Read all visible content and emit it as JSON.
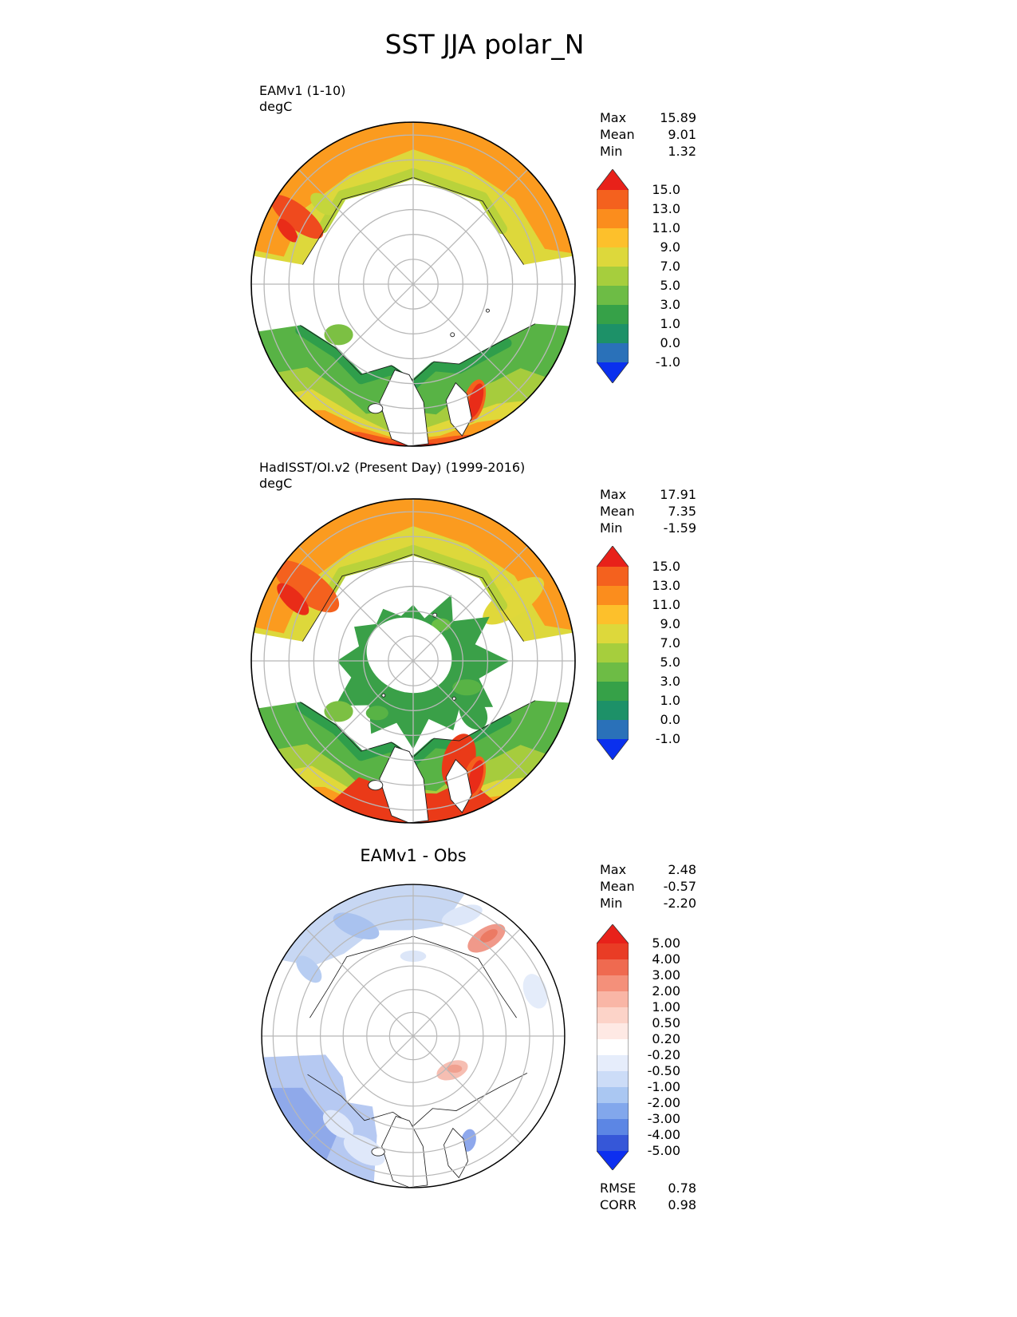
{
  "title": "SST JJA polar_N",
  "panels": [
    {
      "id": "model",
      "label": "EAMv1 (1-10)",
      "units": "degC",
      "stats": {
        "rows": [
          {
            "label": "Max",
            "value": "15.89"
          },
          {
            "label": "Mean",
            "value": "9.01"
          },
          {
            "label": "Min",
            "value": "1.32"
          }
        ]
      },
      "colorbar": {
        "arrow_top": "#e8211a",
        "segments": [
          "#f4611e",
          "#fb8d1d",
          "#fdc02b",
          "#ddd83b",
          "#a6ce3d",
          "#6dbc45",
          "#36a148",
          "#1d9168",
          "#2a71b9"
        ],
        "arrow_bottom": "#0a30ee",
        "ticks": [
          "15.0",
          "13.0",
          "11.0",
          "9.0",
          "7.0",
          "5.0",
          "3.0",
          "1.0",
          "0.0",
          "-1.0"
        ]
      }
    },
    {
      "id": "obs",
      "label": "HadISST/OI.v2 (Present Day) (1999-2016)",
      "units": "degC",
      "stats": {
        "rows": [
          {
            "label": "Max",
            "value": "17.91"
          },
          {
            "label": "Mean",
            "value": "7.35"
          },
          {
            "label": "Min",
            "value": "-1.59"
          }
        ]
      },
      "colorbar": {
        "arrow_top": "#e8211a",
        "segments": [
          "#f4611e",
          "#fb8d1d",
          "#fdc02b",
          "#ddd83b",
          "#a6ce3d",
          "#6dbc45",
          "#36a148",
          "#1d9168",
          "#2a71b9"
        ],
        "arrow_bottom": "#0a30ee",
        "ticks": [
          "15.0",
          "13.0",
          "11.0",
          "9.0",
          "7.0",
          "5.0",
          "3.0",
          "1.0",
          "0.0",
          "-1.0"
        ]
      }
    },
    {
      "id": "diff",
      "label": "EAMv1 - Obs",
      "stats": {
        "rows": [
          {
            "label": "Max",
            "value": "2.48"
          },
          {
            "label": "Mean",
            "value": "-0.57"
          },
          {
            "label": "Min",
            "value": "-2.20"
          }
        ]
      },
      "extra_stats": {
        "rows": [
          {
            "label": "RMSE",
            "value": "0.78"
          },
          {
            "label": "CORR",
            "value": "0.98"
          }
        ]
      },
      "colorbar": {
        "arrow_top": "#e8211a",
        "segments": [
          "#e93c25",
          "#ef6a50",
          "#f4907a",
          "#f9b6a6",
          "#fcd3c8",
          "#fee9e4",
          "#ffffff",
          "#e6edfb",
          "#ccdcf7",
          "#aac7f2",
          "#82a7ec",
          "#5c86e4",
          "#3657d8"
        ],
        "arrow_bottom": "#0d2ff0",
        "ticks": [
          "5.00",
          "4.00",
          "3.00",
          "2.00",
          "1.00",
          "0.50",
          "0.20",
          "-0.20",
          "-0.50",
          "-1.00",
          "-2.00",
          "-3.00",
          "-4.00",
          "-5.00"
        ]
      }
    }
  ],
  "chart_data": [
    {
      "type": "heatmap",
      "projection": "north_polar_stereographic",
      "variable": "SST",
      "season": "JJA",
      "region": "polar_N",
      "title": "EAMv1 (1-10)",
      "units": "degC",
      "stats": {
        "max": 15.89,
        "mean": 9.01,
        "min": 1.32
      },
      "contour_levels": [
        15.0,
        13.0,
        11.0,
        9.0,
        7.0,
        5.0,
        3.0,
        1.0,
        0.0,
        -1.0
      ],
      "colorbar_extend": "both"
    },
    {
      "type": "heatmap",
      "projection": "north_polar_stereographic",
      "variable": "SST",
      "season": "JJA",
      "region": "polar_N",
      "title": "HadISST/OI.v2 (Present Day) (1999-2016)",
      "units": "degC",
      "stats": {
        "max": 17.91,
        "mean": 7.35,
        "min": -1.59
      },
      "contour_levels": [
        15.0,
        13.0,
        11.0,
        9.0,
        7.0,
        5.0,
        3.0,
        1.0,
        0.0,
        -1.0
      ],
      "colorbar_extend": "both"
    },
    {
      "type": "heatmap",
      "projection": "north_polar_stereographic",
      "variable": "SST difference (model minus observation)",
      "season": "JJA",
      "region": "polar_N",
      "title": "EAMv1 - Obs",
      "stats": {
        "max": 2.48,
        "mean": -0.57,
        "min": -2.2,
        "rmse": 0.78,
        "corr": 0.98
      },
      "contour_levels": [
        5.0,
        4.0,
        3.0,
        2.0,
        1.0,
        0.5,
        0.2,
        -0.2,
        -0.5,
        -1.0,
        -2.0,
        -3.0,
        -4.0,
        -5.0
      ],
      "colorbar_extend": "both"
    }
  ]
}
